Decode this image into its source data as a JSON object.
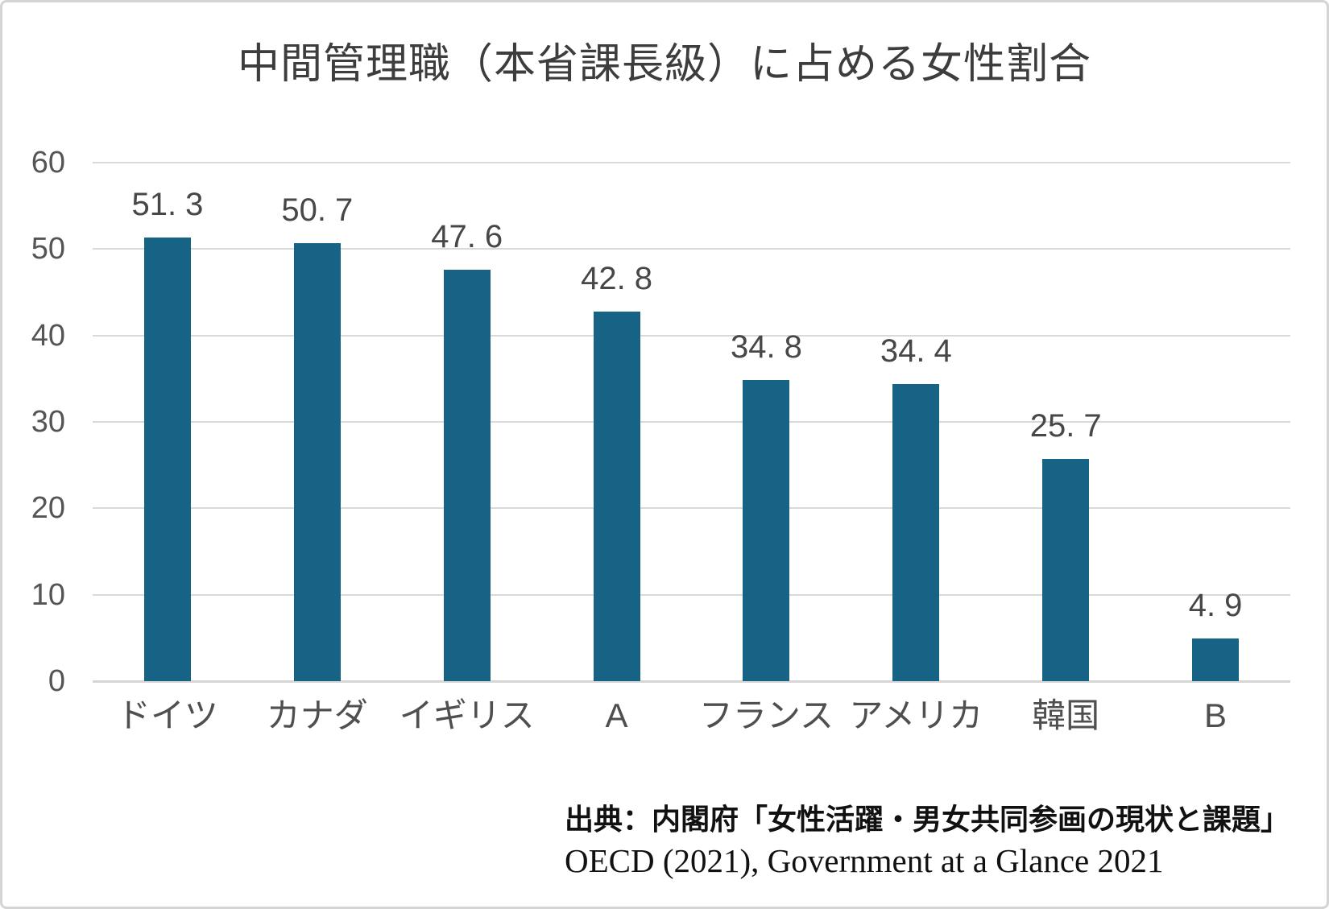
{
  "chart_data": {
    "type": "bar",
    "title": "中間管理職（本省課長級）に占める女性割合",
    "categories": [
      "ドイツ",
      "カナダ",
      "イギリス",
      "A",
      "フランス",
      "アメリカ",
      "韓国",
      "B"
    ],
    "values": [
      51.3,
      50.7,
      47.6,
      42.8,
      34.8,
      34.4,
      25.7,
      4.9
    ],
    "value_labels": [
      "51. 3",
      "50. 7",
      "47. 6",
      "42. 8",
      "34. 8",
      "34. 4",
      "25. 7",
      "4. 9"
    ],
    "ylim": [
      0,
      60
    ],
    "yticks": [
      0,
      10,
      20,
      30,
      40,
      50,
      60
    ],
    "ytick_labels": [
      "0",
      "10",
      "20",
      "30",
      "40",
      "50",
      "60"
    ],
    "grid": true,
    "legend": "none",
    "bar_color": "#166385",
    "grid_color": "#d9d9d9",
    "title_color": "#3d3d3d",
    "value_label_color": "#474747",
    "axis_label_color": "#555555"
  },
  "source": {
    "line1": "出典：内閣府「女性活躍・男女共同参画の現状と課題」",
    "line2": "OECD (2021), Government at a Glance 2021"
  }
}
